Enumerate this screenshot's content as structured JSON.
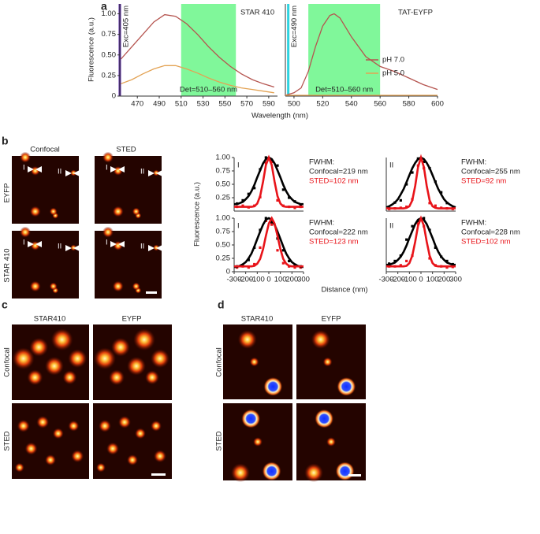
{
  "panel_labels": [
    "a",
    "b",
    "c",
    "d"
  ],
  "image_panels": {
    "b": {
      "columns": [
        "Confocal",
        "STED"
      ],
      "rows": [
        "EYFP",
        "STAR 410"
      ],
      "markers": [
        "I",
        "II"
      ]
    },
    "c": {
      "columns": [
        "STAR410",
        "EYFP"
      ],
      "rows": [
        "Confocal",
        "STED"
      ]
    },
    "d": {
      "columns": [
        "STAR410",
        "EYFP"
      ],
      "rows": [
        "Confocal",
        "STED"
      ]
    }
  },
  "chart_data": [
    {
      "type": "line",
      "title": "STAR 410",
      "xlabel": "Wavelength (nm)",
      "ylabel": "Fluorescence (a.u.)",
      "xlim": [
        454,
        598
      ],
      "xticks": [
        470,
        490,
        510,
        530,
        550,
        570,
        590
      ],
      "ylim": [
        0,
        1.12
      ],
      "yticks": [
        0,
        0.25,
        {
          "value": 0.5,
          "label": "0.50"
        },
        0.75,
        {
          "value": 1,
          "label": "1.00"
        }
      ],
      "bands": [
        {
          "range": [
            510,
            560
          ],
          "color": "#80f79a",
          "label": "Det=510–560 nm"
        }
      ],
      "vlines": [
        {
          "x": 454,
          "color": "#5a2aa6",
          "label": "Exc=405 nm"
        }
      ],
      "series": [
        {
          "color": "#b5544f",
          "style": "line",
          "x": [
            455,
            465,
            475,
            485,
            495,
            505,
            515,
            525,
            535,
            545,
            555,
            565,
            575,
            585,
            595
          ],
          "values": [
            0.45,
            0.6,
            0.75,
            0.9,
            0.99,
            0.97,
            0.88,
            0.75,
            0.6,
            0.47,
            0.36,
            0.27,
            0.2,
            0.15,
            0.11
          ]
        },
        {
          "color": "#e3a253",
          "style": "line",
          "x": [
            455,
            465,
            475,
            485,
            495,
            505,
            515,
            525,
            535,
            545,
            555,
            565,
            575,
            585,
            595
          ],
          "values": [
            0.15,
            0.2,
            0.27,
            0.33,
            0.37,
            0.37,
            0.33,
            0.28,
            0.22,
            0.17,
            0.13,
            0.1,
            0.08,
            0.06,
            0.04
          ]
        }
      ]
    },
    {
      "type": "line",
      "title": "TAT-EYFP",
      "legend": "right",
      "xlim": [
        494,
        600
      ],
      "xticks": [
        500,
        520,
        540,
        560,
        580,
        600
      ],
      "ylim": [
        0,
        1.12
      ],
      "bands": [
        {
          "range": [
            510,
            560
          ],
          "color": "#80f79a",
          "label": "Det=510–560 nm"
        }
      ],
      "vlines": [
        {
          "x": 496,
          "color": "#2fd3e0",
          "label": "Exc=490 nm"
        }
      ],
      "series": [
        {
          "name": "pH 7.0",
          "color": "#b5544f",
          "style": "line",
          "x": [
            494,
            500,
            505,
            510,
            515,
            520,
            525,
            528,
            532,
            540,
            550,
            560,
            570,
            580,
            590,
            600
          ],
          "values": [
            0.01,
            0.04,
            0.1,
            0.3,
            0.6,
            0.85,
            0.98,
            1.0,
            0.95,
            0.72,
            0.48,
            0.36,
            0.3,
            0.22,
            0.14,
            0.08
          ]
        },
        {
          "name": "pH 5.0",
          "color": "#e3a253",
          "style": "line",
          "x": [
            494,
            500,
            505,
            510,
            515,
            520,
            525,
            528,
            532,
            540,
            550,
            560,
            570,
            580,
            590,
            600
          ],
          "values": [
            0.01,
            0.01,
            0.01,
            0.01,
            0.01,
            0.01,
            0.01,
            0.01,
            0.01,
            0.01,
            0.01,
            0.01,
            0.01,
            0.01,
            0.01,
            0.01
          ]
        }
      ]
    },
    {
      "type": "line",
      "label": "I",
      "xlim": [
        -300,
        300
      ],
      "ylim": [
        0,
        1
      ],
      "yticks": [
        0.25,
        {
          "value": 0.5,
          "label": "0.50"
        },
        0.75,
        {
          "value": 1,
          "label": "1.00"
        }
      ],
      "annotations": [
        {
          "text": "FWHM:"
        },
        {
          "text": "Confocal=219 nm"
        },
        {
          "text": "STED=102 nm",
          "color": "#e8141a"
        }
      ],
      "series": [
        {
          "color": "#000000",
          "style": "points",
          "x": [
            -275,
            -225,
            -175,
            -125,
            -75,
            -25,
            25,
            75,
            125,
            175,
            225,
            275
          ],
          "values": [
            0.14,
            0.2,
            0.32,
            0.43,
            0.78,
            1.0,
            0.95,
            0.85,
            0.4,
            0.25,
            0.18,
            0.1
          ]
        },
        {
          "color": "#e8141a",
          "style": "points",
          "x": [
            -275,
            -225,
            -175,
            -125,
            -75,
            -25,
            25,
            75,
            125,
            175,
            225,
            275
          ],
          "values": [
            0.08,
            0.1,
            0.07,
            0.1,
            0.26,
            0.9,
            0.92,
            0.2,
            0.1,
            0.08,
            0.06,
            0.08
          ]
        },
        {
          "color": "#000000",
          "style": "line",
          "x": [
            -300,
            -275,
            -250,
            -225,
            -200,
            -175,
            -150,
            -125,
            -100,
            -75,
            -50,
            -25,
            0,
            25,
            50,
            75,
            100,
            125,
            150,
            175,
            200,
            225,
            250,
            275,
            300
          ],
          "values": [
            0.13,
            0.13,
            0.15,
            0.17,
            0.22,
            0.28,
            0.37,
            0.49,
            0.63,
            0.76,
            0.89,
            0.97,
            1,
            0.97,
            0.89,
            0.76,
            0.63,
            0.49,
            0.37,
            0.28,
            0.22,
            0.17,
            0.15,
            0.13,
            0.13
          ]
        },
        {
          "color": "#e8141a",
          "style": "line",
          "x": [
            -300,
            -275,
            -250,
            -225,
            -200,
            -175,
            -150,
            -125,
            -100,
            -75,
            -50,
            -25,
            0,
            25,
            50,
            75,
            100,
            125,
            150,
            175,
            200,
            225,
            250,
            275,
            300
          ],
          "values": [
            0.08,
            0.08,
            0.08,
            0.08,
            0.08,
            0.08,
            0.08,
            0.09,
            0.14,
            0.28,
            0.55,
            0.86,
            1,
            0.86,
            0.55,
            0.28,
            0.14,
            0.09,
            0.08,
            0.08,
            0.08,
            0.08,
            0.08,
            0.08,
            0.08
          ]
        }
      ]
    },
    {
      "type": "line",
      "label": "II",
      "xlim": [
        -300,
        300
      ],
      "ylim": [
        0,
        1
      ],
      "annotations": [
        {
          "text": "FWHM:"
        },
        {
          "text": "Confocal=255 nm"
        },
        {
          "text": "STED=92 nm",
          "color": "#e8141a"
        }
      ],
      "series": [
        {
          "color": "#000000",
          "style": "points",
          "x": [
            -275,
            -225,
            -175,
            -125,
            -75,
            -25,
            25,
            75,
            125,
            175,
            225,
            275
          ],
          "values": [
            0.05,
            0.16,
            0.2,
            0.5,
            0.72,
            0.98,
            0.92,
            0.8,
            0.55,
            0.35,
            0.15,
            0.05
          ]
        },
        {
          "color": "#e8141a",
          "style": "points",
          "x": [
            -275,
            -225,
            -175,
            -125,
            -75,
            -25,
            25,
            75,
            125,
            175,
            225,
            275
          ],
          "values": [
            0.04,
            0.05,
            0.06,
            0.08,
            0.22,
            0.85,
            0.8,
            0.15,
            0.1,
            0.06,
            0.05,
            0.04
          ]
        },
        {
          "color": "#000000",
          "style": "line",
          "x": [
            -300,
            -275,
            -250,
            -225,
            -200,
            -175,
            -150,
            -125,
            -100,
            -75,
            -50,
            -25,
            0,
            25,
            50,
            75,
            100,
            125,
            150,
            175,
            200,
            225,
            250,
            275,
            300
          ],
          "values": [
            0.07,
            0.09,
            0.12,
            0.16,
            0.22,
            0.31,
            0.41,
            0.54,
            0.67,
            0.8,
            0.9,
            0.97,
            1,
            0.97,
            0.9,
            0.8,
            0.67,
            0.54,
            0.41,
            0.31,
            0.22,
            0.16,
            0.12,
            0.09,
            0.07
          ]
        },
        {
          "color": "#e8141a",
          "style": "line",
          "x": [
            -300,
            -275,
            -250,
            -225,
            -200,
            -175,
            -150,
            -125,
            -100,
            -75,
            -50,
            -25,
            0,
            25,
            50,
            75,
            100,
            125,
            150,
            175,
            200,
            225,
            250,
            275,
            300
          ],
          "values": [
            0.05,
            0.05,
            0.05,
            0.05,
            0.05,
            0.05,
            0.05,
            0.06,
            0.09,
            0.2,
            0.47,
            0.82,
            1,
            0.82,
            0.47,
            0.2,
            0.09,
            0.06,
            0.05,
            0.05,
            0.05,
            0.05,
            0.05,
            0.05,
            0.05
          ]
        }
      ]
    },
    {
      "type": "line",
      "label": "I",
      "xlabel": "Distance (nm)",
      "ylabel": "Fluorescence (a.u.)",
      "xlim": [
        -300,
        300
      ],
      "xticks": [
        -300,
        -200,
        -100,
        0,
        100,
        200,
        300
      ],
      "ylim": [
        0,
        1
      ],
      "yticks": [
        0,
        0.25,
        {
          "value": 0.5,
          "label": "0.50"
        },
        0.75,
        {
          "value": 1,
          "label": "1.00"
        }
      ],
      "annotations": [
        {
          "text": "FWHM:"
        },
        {
          "text": "Confocal=222 nm"
        },
        {
          "text": "STED=123 nm",
          "color": "#e8141a"
        }
      ],
      "series": [
        {
          "color": "#000000",
          "style": "points",
          "x": [
            -275,
            -225,
            -175,
            -125,
            -75,
            -25,
            25,
            75,
            125,
            175,
            225,
            275
          ],
          "values": [
            0.1,
            0.12,
            0.22,
            0.45,
            0.78,
            1.0,
            0.92,
            0.62,
            0.4,
            0.2,
            0.13,
            0.1
          ]
        },
        {
          "color": "#e8141a",
          "style": "points",
          "x": [
            -275,
            -225,
            -175,
            -125,
            -75,
            -25,
            25,
            75,
            125,
            175,
            225,
            275
          ],
          "values": [
            0.08,
            0.1,
            0.08,
            0.14,
            0.45,
            0.95,
            0.88,
            0.4,
            0.16,
            0.1,
            0.08,
            0.08
          ]
        },
        {
          "color": "#000000",
          "style": "line",
          "x": [
            -300,
            -275,
            -250,
            -225,
            -200,
            -175,
            -150,
            -125,
            -100,
            -75,
            -50,
            -25,
            0,
            25,
            50,
            75,
            100,
            125,
            150,
            175,
            200,
            225,
            250,
            275,
            300
          ],
          "values": [
            0.09,
            0.09,
            0.11,
            0.14,
            0.18,
            0.25,
            0.34,
            0.47,
            0.61,
            0.75,
            0.88,
            0.97,
            1,
            0.97,
            0.88,
            0.75,
            0.61,
            0.47,
            0.34,
            0.25,
            0.18,
            0.14,
            0.11,
            0.09,
            0.09
          ]
        },
        {
          "color": "#e8141a",
          "style": "line",
          "x": [
            -300,
            -275,
            -250,
            -225,
            -200,
            -175,
            -150,
            -125,
            -100,
            -75,
            -50,
            -25,
            0,
            25,
            50,
            75,
            100,
            125,
            150,
            175,
            200,
            225,
            250,
            275,
            300
          ],
          "values": [
            0.1,
            0.1,
            0.1,
            0.1,
            0.1,
            0.1,
            0.1,
            0.11,
            0.15,
            0.24,
            0.42,
            0.67,
            0.9,
            1,
            0.9,
            0.67,
            0.42,
            0.24,
            0.15,
            0.11,
            0.1,
            0.1,
            0.1,
            0.1,
            0.1
          ]
        }
      ]
    },
    {
      "type": "line",
      "label": "II",
      "xlim": [
        -300,
        300
      ],
      "xticks": [
        -300,
        -200,
        -100,
        0,
        100,
        200,
        300
      ],
      "ylim": [
        0,
        1
      ],
      "annotations": [
        {
          "text": "FWHM:"
        },
        {
          "text": "Confocal=228 nm"
        },
        {
          "text": "STED=102 nm",
          "color": "#e8141a"
        }
      ],
      "series": [
        {
          "color": "#000000",
          "style": "points",
          "x": [
            -275,
            -225,
            -175,
            -125,
            -75,
            -25,
            25,
            75,
            125,
            175,
            225,
            275
          ],
          "values": [
            0.15,
            0.2,
            0.3,
            0.6,
            0.85,
            0.95,
            1.0,
            0.78,
            0.45,
            0.28,
            0.2,
            0.14
          ]
        },
        {
          "color": "#e8141a",
          "style": "points",
          "x": [
            -275,
            -225,
            -175,
            -125,
            -75,
            -25,
            25,
            75,
            125,
            175,
            225,
            275
          ],
          "values": [
            0.1,
            0.1,
            0.12,
            0.2,
            0.3,
            0.9,
            0.85,
            0.25,
            0.12,
            0.1,
            0.08,
            0.09
          ]
        },
        {
          "color": "#000000",
          "style": "line",
          "x": [
            -300,
            -275,
            -250,
            -225,
            -200,
            -175,
            -150,
            -125,
            -100,
            -75,
            -50,
            -25,
            0,
            25,
            50,
            75,
            100,
            125,
            150,
            175,
            200,
            225,
            250,
            275,
            300
          ],
          "values": [
            0.13,
            0.13,
            0.15,
            0.17,
            0.22,
            0.28,
            0.37,
            0.49,
            0.63,
            0.76,
            0.89,
            0.97,
            1,
            0.97,
            0.89,
            0.76,
            0.63,
            0.49,
            0.37,
            0.28,
            0.22,
            0.17,
            0.15,
            0.13,
            0.13
          ]
        },
        {
          "color": "#e8141a",
          "style": "line",
          "x": [
            -300,
            -275,
            -250,
            -225,
            -200,
            -175,
            -150,
            -125,
            -100,
            -75,
            -50,
            -25,
            0,
            25,
            50,
            75,
            100,
            125,
            150,
            175,
            200,
            225,
            250,
            275,
            300
          ],
          "values": [
            0.1,
            0.1,
            0.1,
            0.1,
            0.1,
            0.1,
            0.1,
            0.11,
            0.16,
            0.3,
            0.56,
            0.86,
            1,
            0.86,
            0.56,
            0.3,
            0.16,
            0.11,
            0.1,
            0.1,
            0.1,
            0.1,
            0.1,
            0.1,
            0.1
          ]
        }
      ]
    }
  ]
}
